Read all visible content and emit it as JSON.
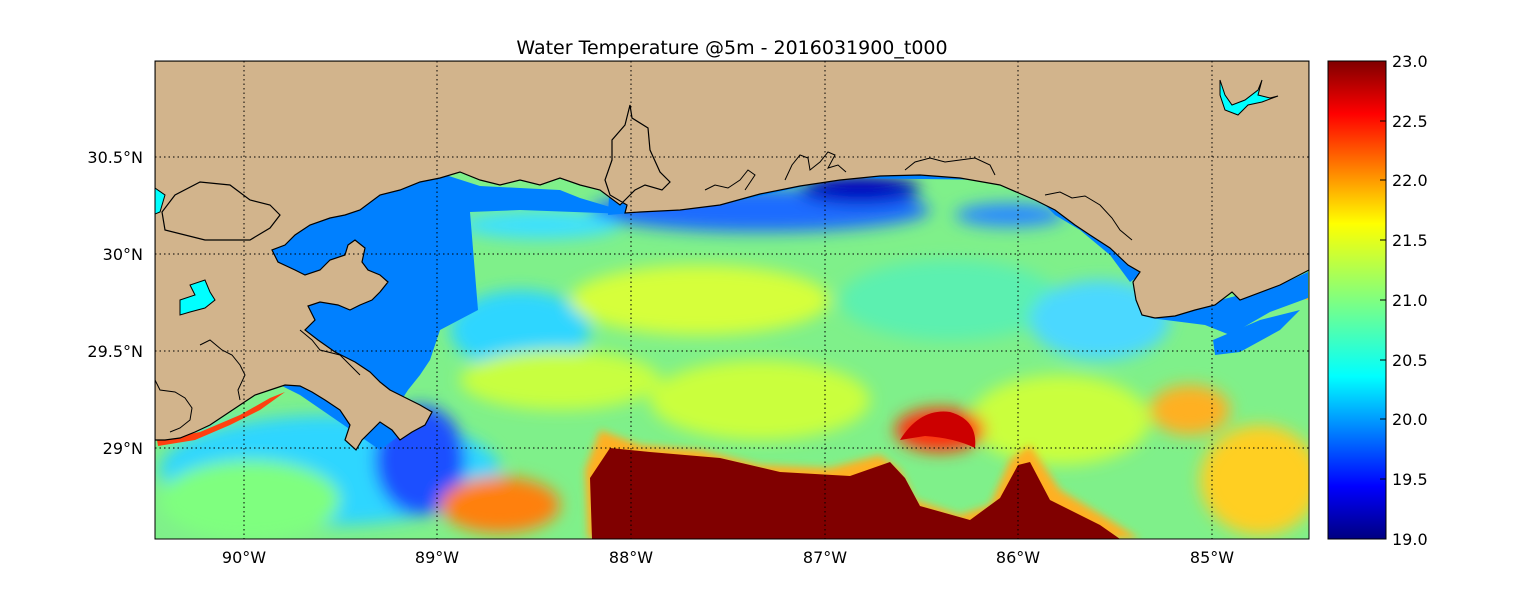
{
  "title": "Water Temperature @5m - 2016031900_t000",
  "map": {
    "x_ticks": [
      "90°W",
      "89°W",
      "88°W",
      "87°W",
      "86°W",
      "85°W"
    ],
    "y_ticks": [
      "30.5°N",
      "30°N",
      "29.5°N",
      "29°N"
    ],
    "grid": true,
    "land_color": "#d2b48c",
    "water_nodata_color": "#0080ff",
    "inland_water_color": "#00ffff"
  },
  "colorbar": {
    "ticks": [
      "23.0",
      "22.5",
      "22.0",
      "21.5",
      "21.0",
      "20.5",
      "20.0",
      "19.5",
      "19.0"
    ],
    "min": 19.0,
    "max": 23.0,
    "colormap": "jet"
  }
}
